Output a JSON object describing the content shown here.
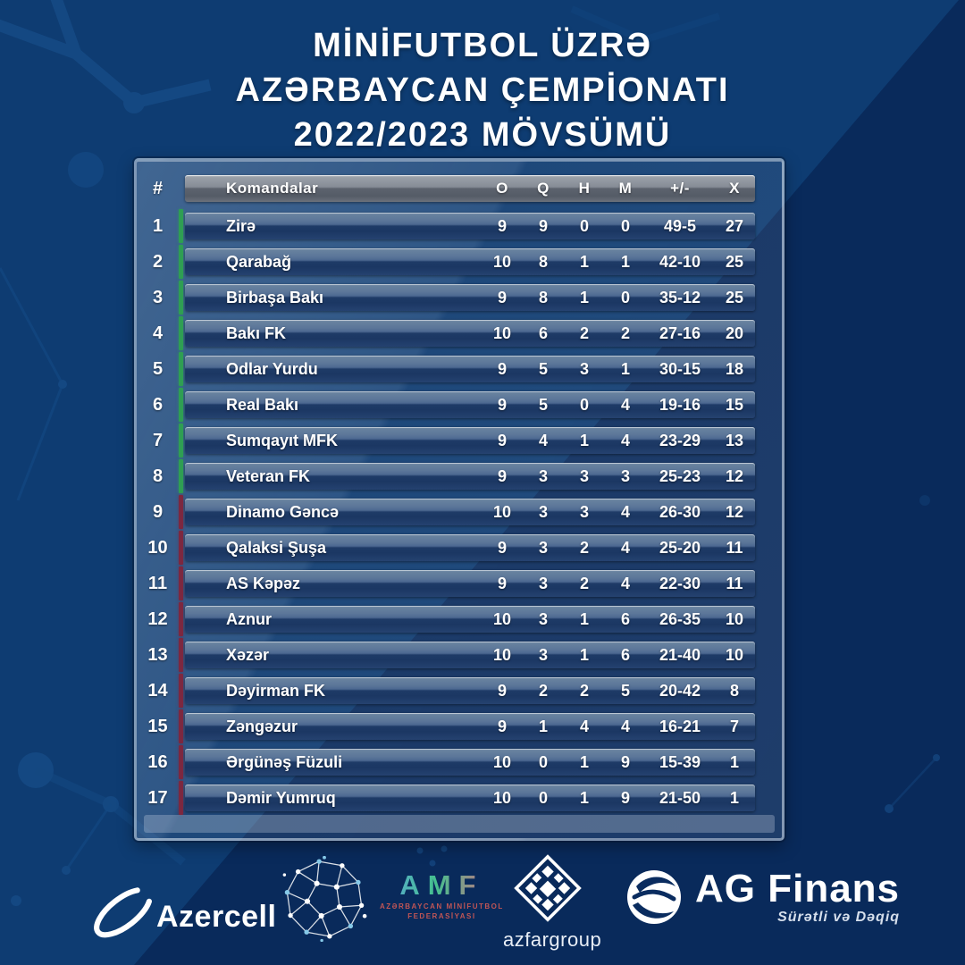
{
  "title": {
    "line1": "MİNİFUTBOL  ÜZRƏ",
    "line2": "AZƏRBAYCAN ÇEMPİONATI",
    "line3": "2022/2023 MÖVSÜMÜ"
  },
  "table": {
    "rank_header": "#",
    "team_header": "Komandalar",
    "stat_headers": [
      "O",
      "Q",
      "H",
      "M",
      "+/-",
      "X"
    ]
  },
  "chart_data": {
    "type": "table",
    "title": "MİNİFUTBOL ÜZRƏ AZƏRBAYCAN ÇEMPİONATI 2022/2023 MÖVSÜMÜ",
    "columns": [
      "#",
      "Komandalar",
      "O",
      "Q",
      "H",
      "M",
      "+/-",
      "X"
    ],
    "rows": [
      {
        "pos": 1,
        "team": "Zirə",
        "o": 9,
        "q": 9,
        "h": 0,
        "m": 0,
        "gd": "49-5",
        "x": 27,
        "zone": "green"
      },
      {
        "pos": 2,
        "team": "Qarabağ",
        "o": 10,
        "q": 8,
        "h": 1,
        "m": 1,
        "gd": "42-10",
        "x": 25,
        "zone": "green"
      },
      {
        "pos": 3,
        "team": "Birbaşa Bakı",
        "o": 9,
        "q": 8,
        "h": 1,
        "m": 0,
        "gd": "35-12",
        "x": 25,
        "zone": "green"
      },
      {
        "pos": 4,
        "team": "Bakı FK",
        "o": 10,
        "q": 6,
        "h": 2,
        "m": 2,
        "gd": "27-16",
        "x": 20,
        "zone": "green"
      },
      {
        "pos": 5,
        "team": "Odlar Yurdu",
        "o": 9,
        "q": 5,
        "h": 3,
        "m": 1,
        "gd": "30-15",
        "x": 18,
        "zone": "green"
      },
      {
        "pos": 6,
        "team": "Real Bakı",
        "o": 9,
        "q": 5,
        "h": 0,
        "m": 4,
        "gd": "19-16",
        "x": 15,
        "zone": "green"
      },
      {
        "pos": 7,
        "team": "Sumqayıt MFK",
        "o": 9,
        "q": 4,
        "h": 1,
        "m": 4,
        "gd": "23-29",
        "x": 13,
        "zone": "green"
      },
      {
        "pos": 8,
        "team": "Veteran FK",
        "o": 9,
        "q": 3,
        "h": 3,
        "m": 3,
        "gd": "25-23",
        "x": 12,
        "zone": "green"
      },
      {
        "pos": 9,
        "team": "Dinamo Gəncə",
        "o": 10,
        "q": 3,
        "h": 3,
        "m": 4,
        "gd": "26-30",
        "x": 12,
        "zone": "red"
      },
      {
        "pos": 10,
        "team": "Qalaksi Şuşa",
        "o": 9,
        "q": 3,
        "h": 2,
        "m": 4,
        "gd": "25-20",
        "x": 11,
        "zone": "red"
      },
      {
        "pos": 11,
        "team": "AS Kəpəz",
        "o": 9,
        "q": 3,
        "h": 2,
        "m": 4,
        "gd": "22-30",
        "x": 11,
        "zone": "red"
      },
      {
        "pos": 12,
        "team": "Aznur",
        "o": 10,
        "q": 3,
        "h": 1,
        "m": 6,
        "gd": "26-35",
        "x": 10,
        "zone": "red"
      },
      {
        "pos": 13,
        "team": "Xəzər",
        "o": 10,
        "q": 3,
        "h": 1,
        "m": 6,
        "gd": "21-40",
        "x": 10,
        "zone": "red"
      },
      {
        "pos": 14,
        "team": "Dəyirman FK",
        "o": 9,
        "q": 2,
        "h": 2,
        "m": 5,
        "gd": "20-42",
        "x": 8,
        "zone": "red"
      },
      {
        "pos": 15,
        "team": "Zəngəzur",
        "o": 9,
        "q": 1,
        "h": 4,
        "m": 4,
        "gd": "16-21",
        "x": 7,
        "zone": "red"
      },
      {
        "pos": 16,
        "team": "Ərgünəş Füzuli",
        "o": 10,
        "q": 0,
        "h": 1,
        "m": 9,
        "gd": "15-39",
        "x": 1,
        "zone": "red"
      },
      {
        "pos": 17,
        "team": "Dəmir Yumruq",
        "o": 10,
        "q": 0,
        "h": 1,
        "m": 9,
        "gd": "21-50",
        "x": 1,
        "zone": "red"
      }
    ]
  },
  "footer": {
    "azercell_label": "Azercell",
    "amf_label": "AMF",
    "amf_sub1": "AZƏRBAYCAN MİNİFUTBOL",
    "amf_sub2": "FEDERASİYASI",
    "azfar_label": "azfargroup",
    "ag_label": "AG Finans",
    "ag_tagline": "Sürətli və Dəqiq"
  },
  "colors": {
    "background": "#092a5b",
    "background_light": "#0e3c72",
    "row_top": "#54729b",
    "row_bottom": "#1d3a66",
    "header_bar": "#868c96",
    "promotion_accent": "#2f9e53",
    "relegation_accent": "#7c2840",
    "text": "#ffffff",
    "amf_sub_text": "#c05555"
  }
}
